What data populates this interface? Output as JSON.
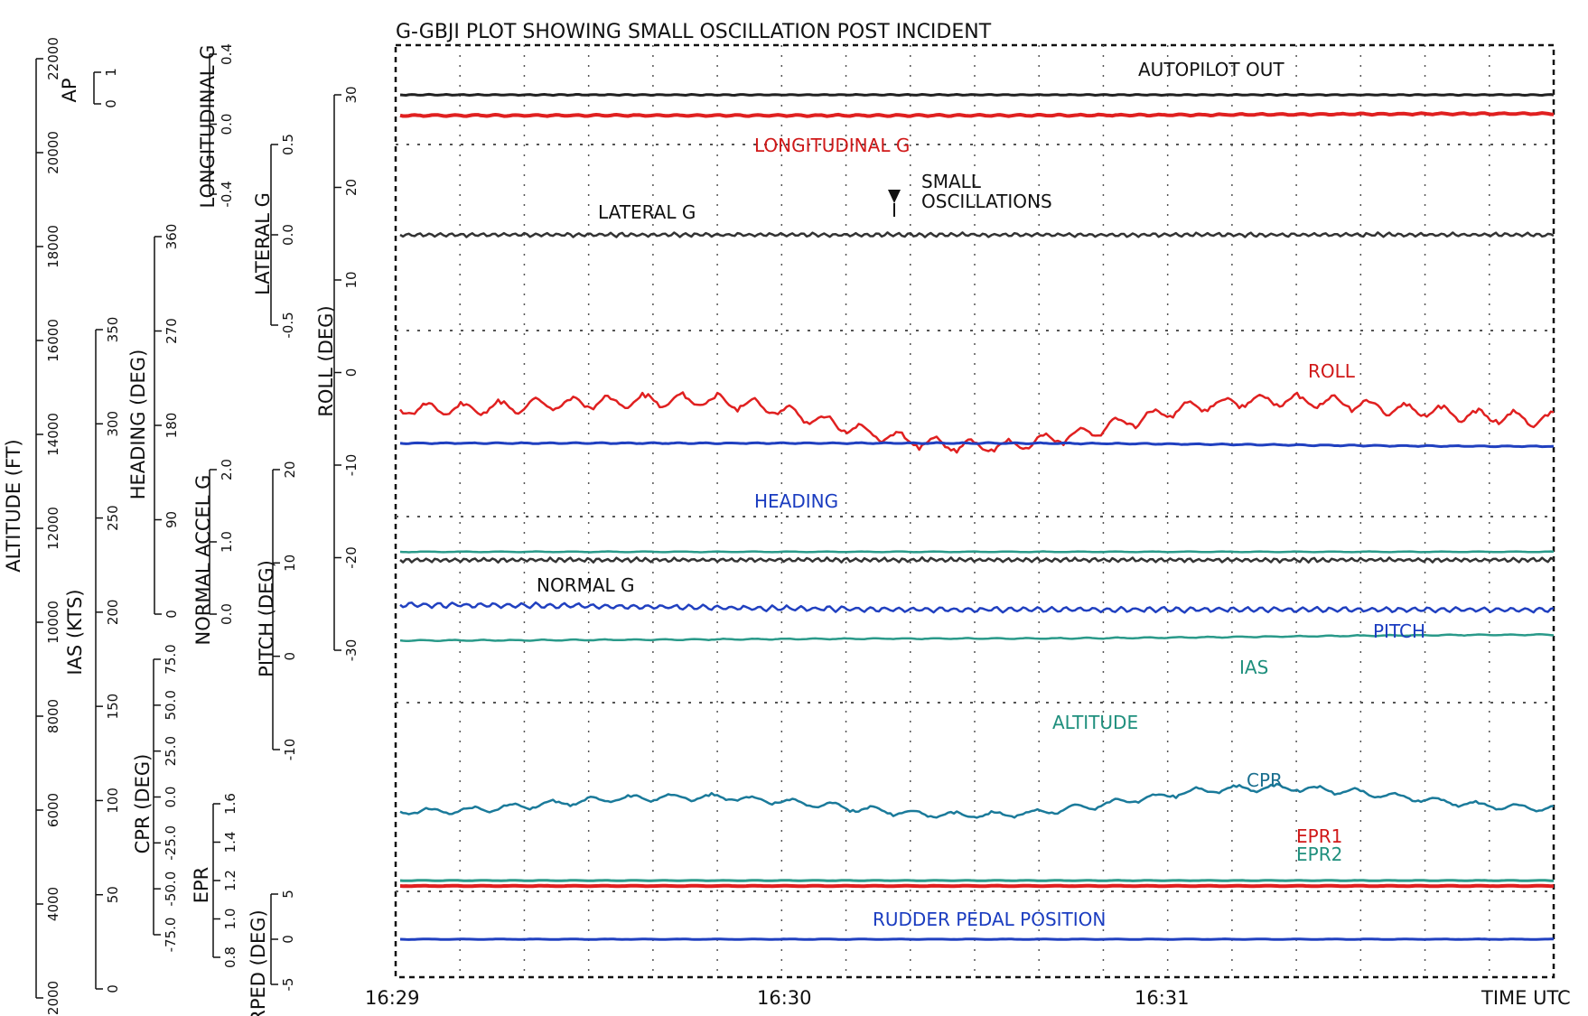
{
  "chart_data": {
    "type": "line",
    "title": "G-GBJI PLOT SHOWING SMALL OSCILLATION POST INCIDENT",
    "xlabel": "TIME UTC",
    "x_ticks": [
      "16:29",
      "16:30",
      "16:31"
    ],
    "grid": true,
    "annotations": {
      "small_oscillations": [
        "SMALL",
        "OSCILLATIONS"
      ]
    },
    "axes": [
      {
        "id": "altitude",
        "label": "ALTITUDE (FT)",
        "ticks": [
          "2000",
          "4000",
          "6000",
          "8000",
          "10000",
          "12000",
          "14000",
          "16000",
          "18000",
          "20000",
          "22000"
        ],
        "range": [
          2000,
          22000
        ]
      },
      {
        "id": "ap",
        "label": "AP",
        "ticks": [
          "0",
          "1"
        ],
        "range": [
          0,
          1
        ]
      },
      {
        "id": "ias",
        "label": "IAS (KTS)",
        "ticks": [
          "0",
          "50",
          "100",
          "150",
          "200",
          "250",
          "300",
          "350"
        ],
        "range": [
          0,
          350
        ]
      },
      {
        "id": "cpr",
        "label": "CPR (DEG)",
        "ticks": [
          "-75.0",
          "-50.0",
          "-25.0",
          "0.0",
          "25.0",
          "50.0",
          "75.0"
        ],
        "range": [
          -75,
          75
        ]
      },
      {
        "id": "heading",
        "label": "HEADING (DEG)",
        "ticks": [
          "0",
          "90",
          "180",
          "270",
          "360"
        ],
        "range": [
          0,
          360
        ]
      },
      {
        "id": "normal_accel",
        "label": "NORMAL ACCEL G",
        "ticks": [
          "0.0",
          "1.0",
          "2.0"
        ],
        "range": [
          0,
          2
        ]
      },
      {
        "id": "longitudinal_g",
        "label": "LONGITUDINAL G",
        "ticks": [
          "-0.4",
          "0.0",
          "0.4"
        ],
        "range": [
          -0.4,
          0.4
        ]
      },
      {
        "id": "epr",
        "label": "EPR",
        "ticks": [
          "0.8",
          "1.0",
          "1.2",
          "1.4",
          "1.6"
        ],
        "range": [
          0.8,
          1.6
        ]
      },
      {
        "id": "rped",
        "label": "RPED (DEG)",
        "ticks": [
          "-5",
          "0",
          "5"
        ],
        "range": [
          -5,
          5
        ]
      },
      {
        "id": "lateral_g",
        "label": "LATERAL G",
        "ticks": [
          "-0.5",
          "0.0",
          "0.5"
        ],
        "range": [
          -0.5,
          0.5
        ]
      },
      {
        "id": "pitch",
        "label": "PITCH (DEG)",
        "ticks": [
          "-10",
          "0",
          "10",
          "20"
        ],
        "range": [
          -10,
          20
        ]
      },
      {
        "id": "roll",
        "label": "ROLL (DEG)",
        "ticks": [
          "-30",
          "-20",
          "-10",
          "0",
          "10",
          "20",
          "30"
        ],
        "range": [
          -30,
          30
        ]
      }
    ],
    "series": [
      {
        "name": "AUTOPILOT OUT",
        "color": "#222222",
        "values": [
          1,
          1,
          1
        ]
      },
      {
        "name": "LONGITUDINAL G",
        "color": "#e02020",
        "values": [
          0.05,
          0.05,
          0.06
        ]
      },
      {
        "name": "LATERAL G",
        "color": "#333333",
        "values": [
          0.0,
          0.0,
          0.0
        ]
      },
      {
        "name": "ROLL",
        "color": "#e02020",
        "values": [
          -4,
          -3,
          -8,
          -3,
          -5
        ]
      },
      {
        "name": "HEADING",
        "color": "#2040c0",
        "values": [
          163,
          163,
          160
        ]
      },
      {
        "name": "NORMAL G",
        "color": "#333333",
        "values": [
          1.0,
          1.0,
          1.0
        ]
      },
      {
        "name": "PITCH",
        "color": "#2040c0",
        "values": [
          5.5,
          5.0,
          5.0
        ]
      },
      {
        "name": "IAS",
        "color": "#2a9a8a",
        "values": [
          185,
          186,
          188
        ]
      },
      {
        "name": "ALTITUDE",
        "color": "#2a9a8a",
        "values": [
          11500,
          11500,
          11500
        ]
      },
      {
        "name": "CPR",
        "color": "#1a7a9a",
        "values": [
          -8,
          0,
          -10,
          5,
          -6
        ]
      },
      {
        "name": "EPR1",
        "color": "#e02020",
        "values": [
          1.2,
          1.2,
          1.2
        ]
      },
      {
        "name": "EPR2",
        "color": "#2a9a8a",
        "values": [
          1.2,
          1.2,
          1.2
        ]
      },
      {
        "name": "RUDDER PEDAL POSITION",
        "color": "#2040c0",
        "values": [
          0,
          0,
          0
        ]
      }
    ]
  }
}
